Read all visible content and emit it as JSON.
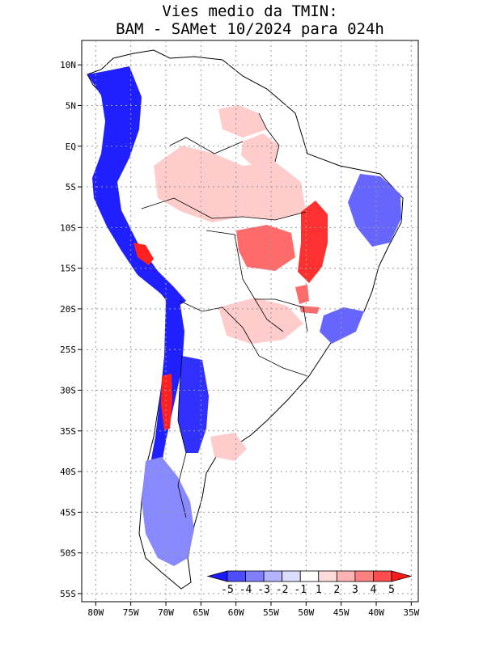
{
  "title": {
    "line1": "Vies medio da TMIN:",
    "line2": "BAM - SAMet 10/2024  para 024h"
  },
  "axes": {
    "lat_ticks": [
      "10N",
      "5N",
      "EQ",
      "5S",
      "10S",
      "15S",
      "20S",
      "25S",
      "30S",
      "35S",
      "40S",
      "45S",
      "50S",
      "55S"
    ],
    "lon_ticks": [
      "80W",
      "75W",
      "70W",
      "65W",
      "60W",
      "55W",
      "50W",
      "45W",
      "40W",
      "35W"
    ],
    "lat_range": [
      13,
      -56
    ],
    "lon_range": [
      -82,
      -34
    ]
  },
  "colorbar": {
    "labels": [
      "-5",
      "-4",
      "-3",
      "-2",
      "-1",
      "1",
      "2",
      "3",
      "4",
      "5"
    ],
    "colors": [
      "#1a1aff",
      "#4d4dff",
      "#8080ff",
      "#b3b3ff",
      "#dcdcff",
      "#ffffff",
      "#ffdcdc",
      "#ffb3b3",
      "#ff8080",
      "#ff4d4d",
      "#ff1a1a"
    ]
  },
  "regions": [
    {
      "name": "amazon-warm",
      "color": "#ffcccc"
    },
    {
      "name": "central-warm",
      "color": "#ff6b6b"
    },
    {
      "name": "tocantins-warm",
      "color": "#ff3030"
    },
    {
      "name": "andes-cold",
      "color": "#1f1fff"
    },
    {
      "name": "chile-cold",
      "color": "#2020ff"
    },
    {
      "name": "argentina-cold",
      "color": "#3030ff"
    },
    {
      "name": "northeast-cold",
      "color": "#6666ff"
    },
    {
      "name": "patagonia-cold",
      "color": "#8888ff"
    },
    {
      "name": "chile-warm",
      "color": "#ff2020"
    }
  ]
}
